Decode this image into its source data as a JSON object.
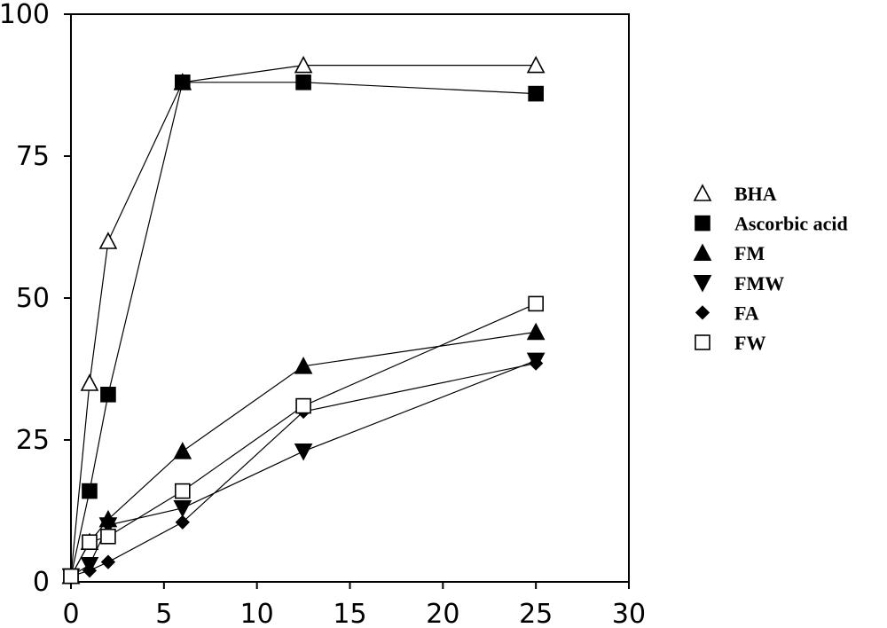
{
  "chart_data": {
    "type": "line",
    "title": "",
    "xlabel": "",
    "ylabel": "",
    "xlim": [
      0,
      30
    ],
    "ylim": [
      0,
      100
    ],
    "x_ticks": [
      0,
      5,
      10,
      15,
      20,
      25,
      30
    ],
    "y_ticks": [
      0,
      25,
      50,
      75,
      100
    ],
    "x_tick_labels": [
      "0",
      "5",
      "10",
      "15",
      "20",
      "25",
      "30"
    ],
    "y_tick_labels": [
      "0",
      "25",
      "50",
      "75",
      "100"
    ],
    "grid": false,
    "legend_position": "right",
    "x": [
      0,
      1,
      2,
      6,
      12.5,
      25
    ],
    "series": [
      {
        "name": "BHA",
        "marker": "triangle-up-open",
        "values": [
          1,
          35,
          60,
          88,
          91,
          91
        ]
      },
      {
        "name": "Ascorbic acid",
        "marker": "square-filled",
        "values": [
          1,
          16,
          33,
          88,
          88,
          86
        ]
      },
      {
        "name": "FM",
        "marker": "triangle-up-filled",
        "values": [
          1,
          7,
          11,
          23,
          38,
          44
        ]
      },
      {
        "name": "FMW",
        "marker": "triangle-down-filled",
        "values": [
          1,
          3,
          10,
          13,
          23,
          39
        ]
      },
      {
        "name": "FA",
        "marker": "diamond-filled",
        "values": [
          1,
          2,
          3.5,
          10.5,
          30,
          38.5
        ]
      },
      {
        "name": "FW",
        "marker": "square-open",
        "values": [
          1,
          7,
          8,
          16,
          31,
          49
        ]
      }
    ]
  }
}
